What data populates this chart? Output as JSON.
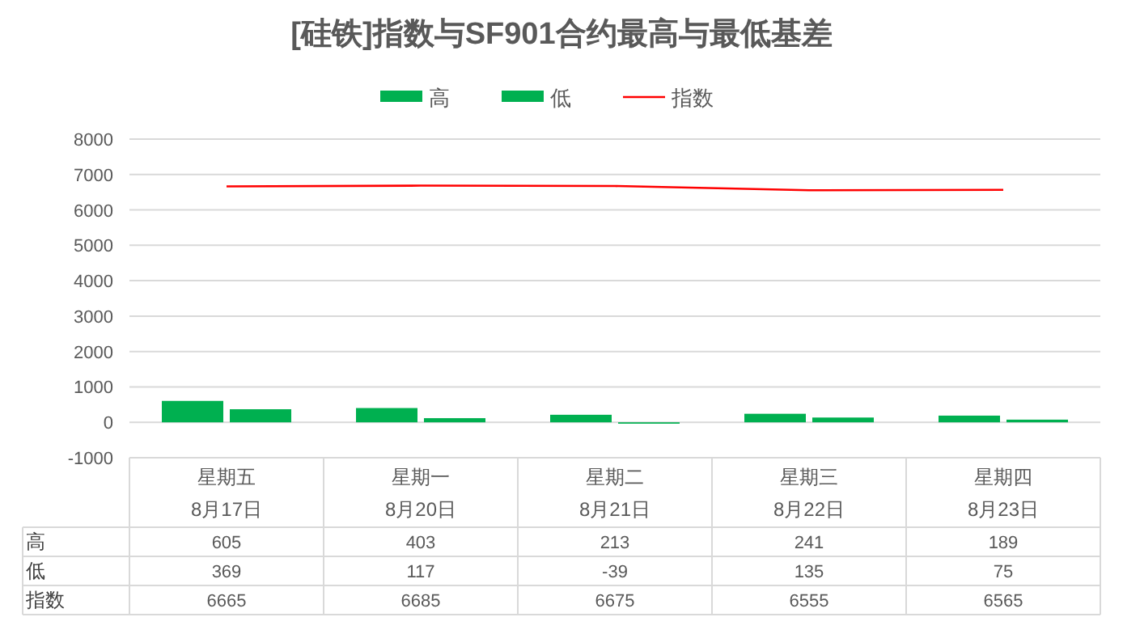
{
  "chart_data": {
    "type": "bar",
    "title": "[硅铁]指数与SF901合约最高与最低基差",
    "categories": [
      "星期五\n8月17日",
      "星期一\n8月20日",
      "星期二\n8月21日",
      "星期三\n8月22日",
      "星期四\n8月23日"
    ],
    "series": [
      {
        "name": "高",
        "color": "#00b050",
        "values": [
          605,
          403,
          213,
          241,
          189
        ]
      },
      {
        "name": "低",
        "color": "#00b050",
        "values": [
          369,
          117,
          -39,
          135,
          75
        ]
      },
      {
        "name": "指数",
        "type": "line",
        "color": "#ff0000",
        "values": [
          6665,
          6685,
          6675,
          6555,
          6565
        ]
      }
    ],
    "ylim": [
      -1000,
      8000
    ],
    "yticks": [
      -1000,
      0,
      1000,
      2000,
      3000,
      4000,
      5000,
      6000,
      7000,
      8000
    ],
    "grid": "y",
    "legend": "top",
    "data_labels": true
  }
}
